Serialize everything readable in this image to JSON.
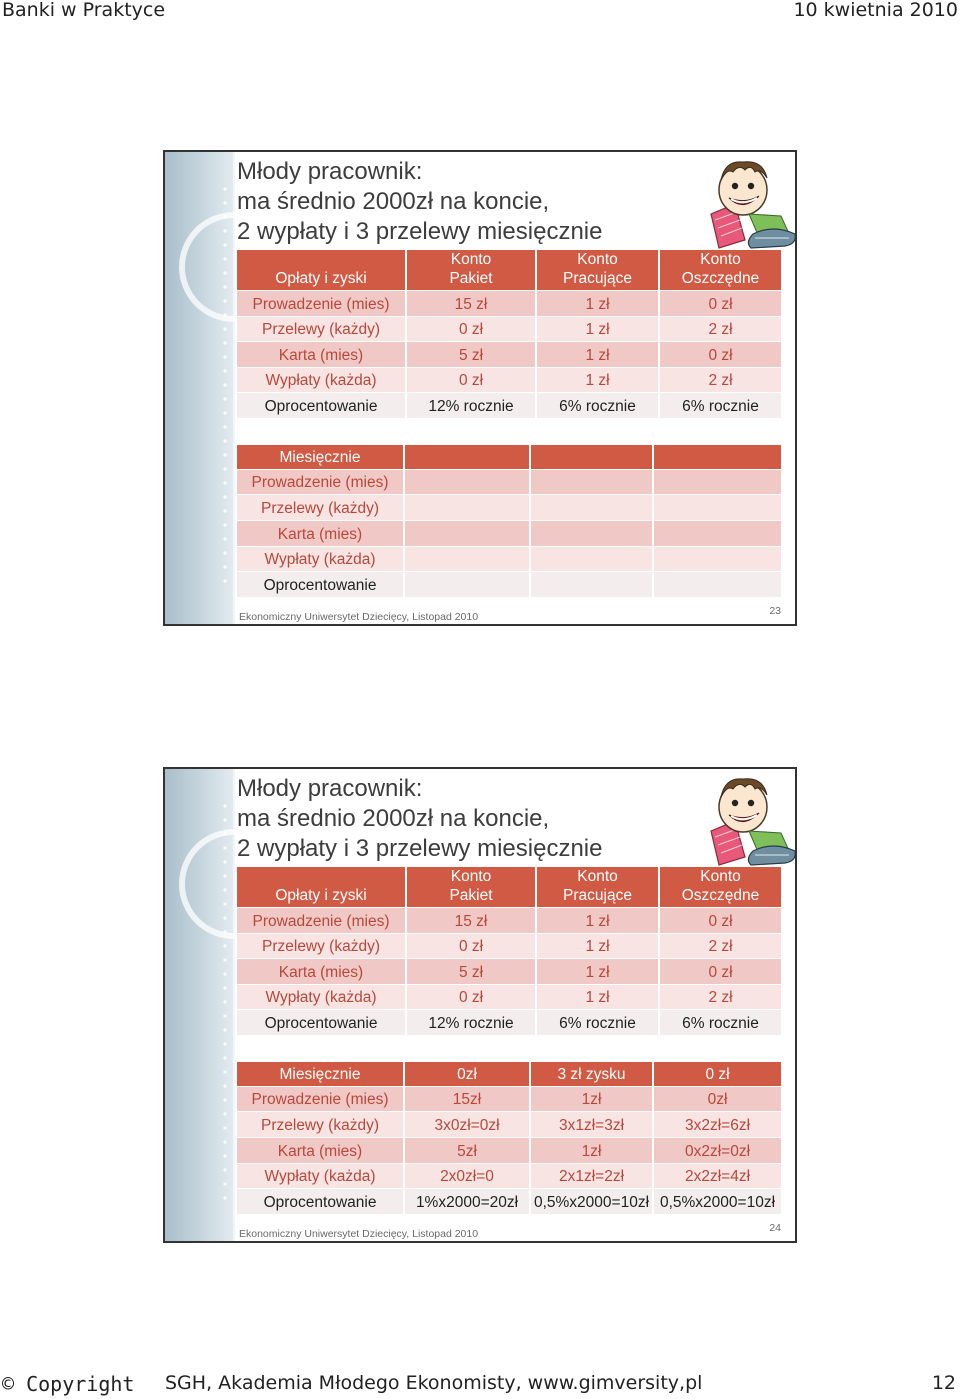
{
  "header": {
    "left": "Banki w Praktyce",
    "right": "10 kwietnia 2010"
  },
  "footer": {
    "copyright_symbol_word": "© Copyright",
    "copyright_rest": "SGH, Akademia Młodego Ekonomisty, www.gimversity,pl",
    "page_number": "12"
  },
  "slides": [
    {
      "title_lines": [
        "Młody pracownik:",
        "ma średnio 2000zł na koncie,",
        "2 wypłaty i 3 przelewy miesięcznie"
      ],
      "fees_table": {
        "headers": [
          "Opłaty i zyski",
          "Konto\nPakiet",
          "Konto\nPracujące",
          "Konto\nOszczędne"
        ],
        "rows": [
          [
            "Prowadzenie (mies)",
            "15 zł",
            "1 zł",
            "0 zł"
          ],
          [
            "Przelewy (każdy)",
            "0 zł",
            "1 zł",
            "2 zł"
          ],
          [
            "Karta (mies)",
            "5 zł",
            "1 zł",
            "0 zł"
          ],
          [
            "Wypłaty (każda)",
            "0 zł",
            "1 zł",
            "2 zł"
          ],
          [
            "Oprocentowanie",
            "12% rocznie",
            "6% rocznie",
            "6% rocznie"
          ]
        ]
      },
      "monthly_table": {
        "headers": [
          "Miesięcznie",
          "",
          "",
          ""
        ],
        "rows": [
          [
            "Prowadzenie (mies)",
            "",
            "",
            ""
          ],
          [
            "Przelewy (każdy)",
            "",
            "",
            ""
          ],
          [
            "Karta (mies)",
            "",
            "",
            ""
          ],
          [
            "Wypłaty (każda)",
            "",
            "",
            ""
          ],
          [
            "Oprocentowanie",
            "",
            "",
            ""
          ]
        ]
      },
      "footer_text": "Ekonomiczny Uniwersytet Dziecięcy, Listopad 2010",
      "slide_number": "23"
    },
    {
      "title_lines": [
        "Młody pracownik:",
        "ma średnio 2000zł na koncie,",
        "2 wypłaty i 3 przelewy miesięcznie"
      ],
      "fees_table": {
        "headers": [
          "Opłaty i zyski",
          "Konto\nPakiet",
          "Konto\nPracujące",
          "Konto\nOszczędne"
        ],
        "rows": [
          [
            "Prowadzenie (mies)",
            "15 zł",
            "1 zł",
            "0 zł"
          ],
          [
            "Przelewy (każdy)",
            "0 zł",
            "1 zł",
            "2 zł"
          ],
          [
            "Karta (mies)",
            "5 zł",
            "1 zł",
            "0 zł"
          ],
          [
            "Wypłaty (każda)",
            "0 zł",
            "1 zł",
            "2 zł"
          ],
          [
            "Oprocentowanie",
            "12% rocznie",
            "6% rocznie",
            "6% rocznie"
          ]
        ]
      },
      "monthly_table": {
        "headers": [
          "Miesięcznie",
          "0zł",
          "3 zł zysku",
          "0 zł"
        ],
        "rows": [
          [
            "Prowadzenie (mies)",
            "15zł",
            "1zł",
            "0zł"
          ],
          [
            "Przelewy (każdy)",
            "3x0zł=0zł",
            "3x1zł=3zł",
            "3x2zł=6zł"
          ],
          [
            "Karta (mies)",
            "5zł",
            "1zł",
            "0x2zł=0zł"
          ],
          [
            "Wypłaty (każda)",
            "2x0zł=0",
            "2x1zł=2zł",
            "2x2zł=4zł"
          ],
          [
            "Oprocentowanie",
            "1%x2000=20zł",
            "0,5%x2000=10zł",
            "0,5%x2000=10zł"
          ]
        ]
      },
      "footer_text": "Ekonomiczny Uniwersytet Dziecięcy, Listopad 2010",
      "slide_number": "24"
    }
  ],
  "icons": {
    "mascot": "cartoon-boy-mascot-icon"
  },
  "colors": {
    "header_row": "#d05a44",
    "row_pink": "#f0c9c6",
    "row_light": "#f7e4e3",
    "label_text": "#b8483a",
    "stripe": "#a9bfcb"
  }
}
